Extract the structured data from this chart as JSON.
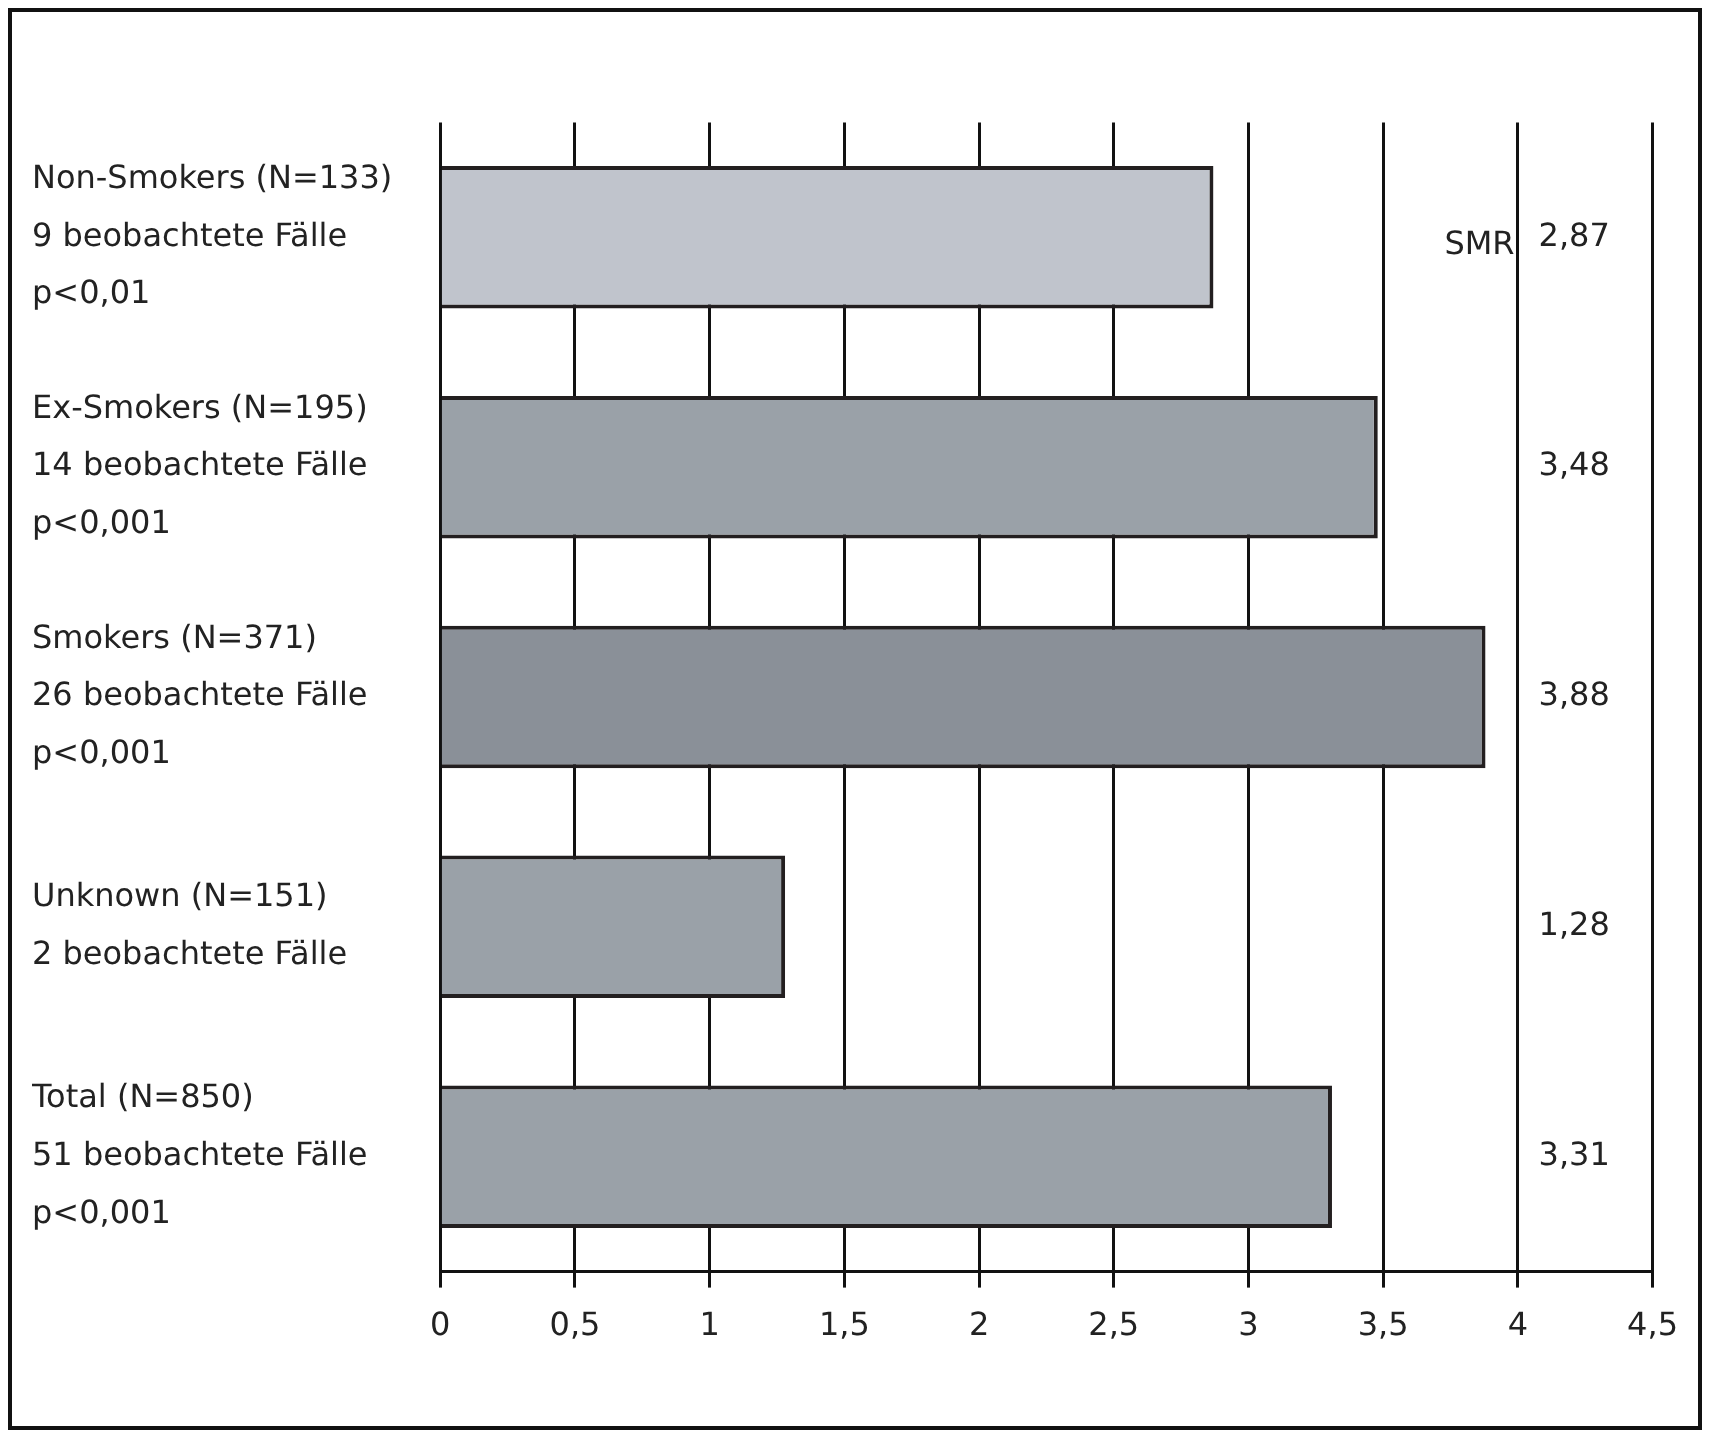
{
  "chart_data": {
    "type": "bar",
    "orientation": "horizontal",
    "categories": [
      "Non-Smokers (N=133)\n9 beobachtete Fälle\np<0,01",
      "Ex-Smokers (N=195)\n14 beobachtete Fälle\np<0,001",
      "Smokers (N=371)\n26 beobachtete Fälle\np<0,001",
      "Unknown (N=151)\n2 beobachtete Fälle",
      "Total (N=850)\n51 beobachtete Fälle\np<0,001"
    ],
    "values": [
      2.87,
      3.48,
      3.88,
      1.28,
      3.31
    ],
    "value_labels": [
      "2,87",
      "3,48",
      "3,88",
      "1,28",
      "3,31"
    ],
    "colors": [
      "#c0c4cc",
      "#9aa1a8",
      "#8a9098",
      "#9aa1a8",
      "#9aa1a8"
    ],
    "xlim": [
      0,
      4.5
    ],
    "xticks": [
      0,
      {
        "value": 0.5,
        "label": "0,5"
      },
      1,
      {
        "value": 1.5,
        "label": "1,5"
      },
      2,
      {
        "value": 2.5,
        "label": "2,5"
      },
      3,
      {
        "value": 3.5,
        "label": "3,5"
      },
      4,
      {
        "value": 4.5,
        "label": "4,5"
      }
    ],
    "annotations": [
      "SMR"
    ],
    "grid": "x",
    "legend": false
  }
}
